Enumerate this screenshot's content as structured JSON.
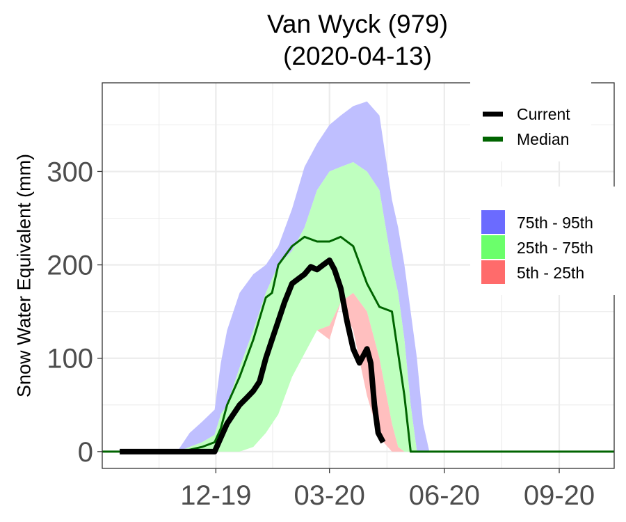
{
  "chart_data": {
    "type": "area",
    "title": "Van Wyck (979)",
    "subtitle": "(2020-04-13)",
    "ylabel": "Snow Water Equivalent (mm)",
    "xlabel": "",
    "ylim": [
      -18,
      395
    ],
    "xlim": [
      "2019-09-01",
      "2020-10-15"
    ],
    "yticks": [
      0,
      100,
      200,
      300
    ],
    "xticks": [
      {
        "label": "12-19",
        "date": "2019-12-01"
      },
      {
        "label": "03-20",
        "date": "2020-03-01"
      },
      {
        "label": "06-20",
        "date": "2020-06-01"
      },
      {
        "label": "09-20",
        "date": "2020-09-01"
      }
    ],
    "grid": true,
    "legend_position": "right",
    "legend_lines": [
      {
        "name": "Current",
        "color": "#000000"
      },
      {
        "name": "Median",
        "color": "#006400"
      }
    ],
    "legend_bands": [
      {
        "name": "75th - 95th",
        "color": "#6b6bff"
      },
      {
        "name": "25th - 75th",
        "color": "#6bff6b"
      },
      {
        "name": "5th - 25th",
        "color": "#ff6b6b"
      }
    ],
    "band_colors": {
      "75th - 95th": "#bfbfff",
      "25th - 75th": "#bfffbf",
      "5th - 25th": "#ffbfbf"
    },
    "bands": {
      "dates": [
        "2019-10-31",
        "2019-11-10",
        "2019-11-20",
        "2019-11-30",
        "2019-12-05",
        "2019-12-10",
        "2019-12-20",
        "2019-12-31",
        "2020-01-10",
        "2020-01-20",
        "2020-01-31",
        "2020-02-10",
        "2020-02-20",
        "2020-03-01",
        "2020-03-10",
        "2020-03-20",
        "2020-03-31",
        "2020-04-10",
        "2020-04-20",
        "2020-04-25",
        "2020-04-30",
        "2020-05-05",
        "2020-05-10",
        "2020-05-15",
        "2020-05-20",
        "2020-05-23"
      ],
      "p5": [
        0,
        0,
        0,
        0,
        0,
        0,
        0,
        5,
        20,
        40,
        80,
        105,
        130,
        120,
        160,
        130,
        60,
        15,
        0,
        0,
        0,
        0,
        0,
        0,
        0,
        0
      ],
      "p25": [
        0,
        0,
        0,
        0,
        0,
        0,
        0,
        5,
        20,
        40,
        80,
        105,
        130,
        135,
        160,
        170,
        150,
        100,
        30,
        5,
        0,
        0,
        0,
        0,
        0,
        0
      ],
      "p75": [
        0,
        5,
        10,
        18,
        40,
        50,
        90,
        130,
        170,
        200,
        215,
        240,
        280,
        300,
        305,
        310,
        300,
        280,
        200,
        170,
        120,
        50,
        0,
        0,
        0,
        0
      ],
      "p95": [
        0,
        20,
        32,
        45,
        95,
        130,
        170,
        190,
        200,
        220,
        260,
        305,
        330,
        350,
        360,
        370,
        375,
        360,
        270,
        240,
        200,
        150,
        100,
        30,
        0,
        0
      ]
    },
    "series": [
      {
        "name": "Current",
        "color": "#000000",
        "dates": [
          "2019-09-15",
          "2019-11-30",
          "2019-12-05",
          "2019-12-10",
          "2019-12-15",
          "2019-12-20",
          "2019-12-26",
          "2019-12-31",
          "2020-01-05",
          "2020-01-10",
          "2020-01-15",
          "2020-01-20",
          "2020-01-25",
          "2020-01-31",
          "2020-02-05",
          "2020-02-10",
          "2020-02-15",
          "2020-02-20",
          "2020-02-25",
          "2020-03-01",
          "2020-03-05",
          "2020-03-10",
          "2020-03-15",
          "2020-03-20",
          "2020-03-25",
          "2020-03-31",
          "2020-04-03",
          "2020-04-06",
          "2020-04-09",
          "2020-04-13"
        ],
        "values": [
          0,
          0,
          15,
          30,
          40,
          50,
          58,
          65,
          75,
          100,
          120,
          140,
          160,
          180,
          185,
          190,
          198,
          195,
          200,
          205,
          195,
          175,
          140,
          110,
          95,
          110,
          95,
          50,
          20,
          10
        ]
      },
      {
        "name": "Median",
        "color": "#006400",
        "dates": [
          "2019-09-01",
          "2019-10-31",
          "2019-11-10",
          "2019-11-20",
          "2019-11-30",
          "2019-12-05",
          "2019-12-10",
          "2019-12-20",
          "2019-12-31",
          "2020-01-10",
          "2020-01-15",
          "2020-01-20",
          "2020-01-31",
          "2020-02-10",
          "2020-02-20",
          "2020-03-01",
          "2020-03-10",
          "2020-03-20",
          "2020-03-31",
          "2020-04-10",
          "2020-04-20",
          "2020-04-30",
          "2020-05-05",
          "2020-05-10",
          "2020-05-15",
          "2020-10-15"
        ],
        "values": [
          0,
          0,
          2,
          5,
          10,
          25,
          50,
          80,
          120,
          165,
          170,
          200,
          220,
          230,
          225,
          225,
          230,
          220,
          180,
          155,
          150,
          60,
          0,
          0,
          0,
          0
        ]
      }
    ]
  }
}
